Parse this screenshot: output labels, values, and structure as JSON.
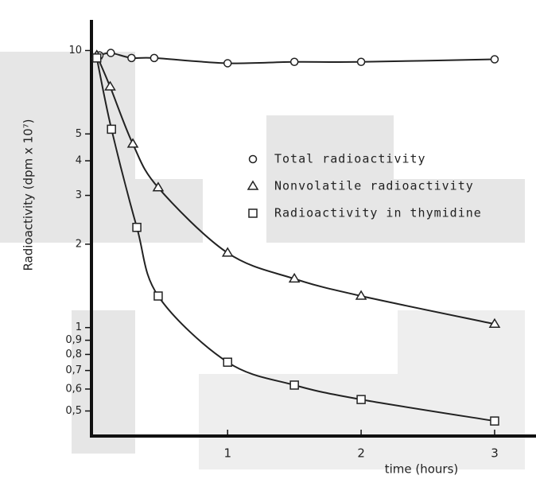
{
  "chart_data": {
    "type": "line",
    "ylabel": "Radioactivity (dpm x 10⁷)",
    "xlabel": "time (hours)",
    "log_y": true,
    "legend": "upper right",
    "xlim": [
      -0.02,
      3.31
    ],
    "ylim": [
      0.406,
      12.9
    ],
    "xticks": [
      1,
      2,
      3
    ],
    "yticks": [
      10,
      5,
      4,
      3,
      2,
      1,
      {
        "value": 0.9,
        "label": "0,9"
      },
      {
        "value": 0.8,
        "label": "0,8"
      },
      {
        "value": 0.7,
        "label": "0,7"
      },
      {
        "value": 0.6,
        "label": "0,6"
      },
      {
        "value": 0.5,
        "label": "0,5"
      }
    ],
    "series": [
      {
        "name": "Total radioactivity",
        "marker": "circle",
        "color": "#222",
        "x": [
          0.04,
          0.125,
          0.28,
          0.45,
          1,
          1.5,
          2,
          3
        ],
        "values": [
          9.6,
          9.8,
          9.4,
          9.4,
          9.0,
          9.1,
          9.1,
          9.3
        ]
      },
      {
        "name": "Nonvolatile radioactivity",
        "marker": "triangle",
        "color": "#222",
        "x": [
          0.02,
          0.12,
          0.29,
          0.48,
          1,
          1.5,
          2,
          3
        ],
        "values": [
          9.6,
          7.4,
          4.6,
          3.2,
          1.86,
          1.5,
          1.3,
          1.03
        ]
      },
      {
        "name": "Radioactivity in thymidine",
        "marker": "square",
        "color": "#222",
        "x": [
          0.02,
          0.13,
          0.32,
          0.48,
          1,
          1.5,
          2,
          3
        ],
        "values": [
          9.4,
          5.2,
          2.3,
          1.3,
          0.75,
          0.62,
          0.55,
          0.46
        ]
      }
    ]
  }
}
